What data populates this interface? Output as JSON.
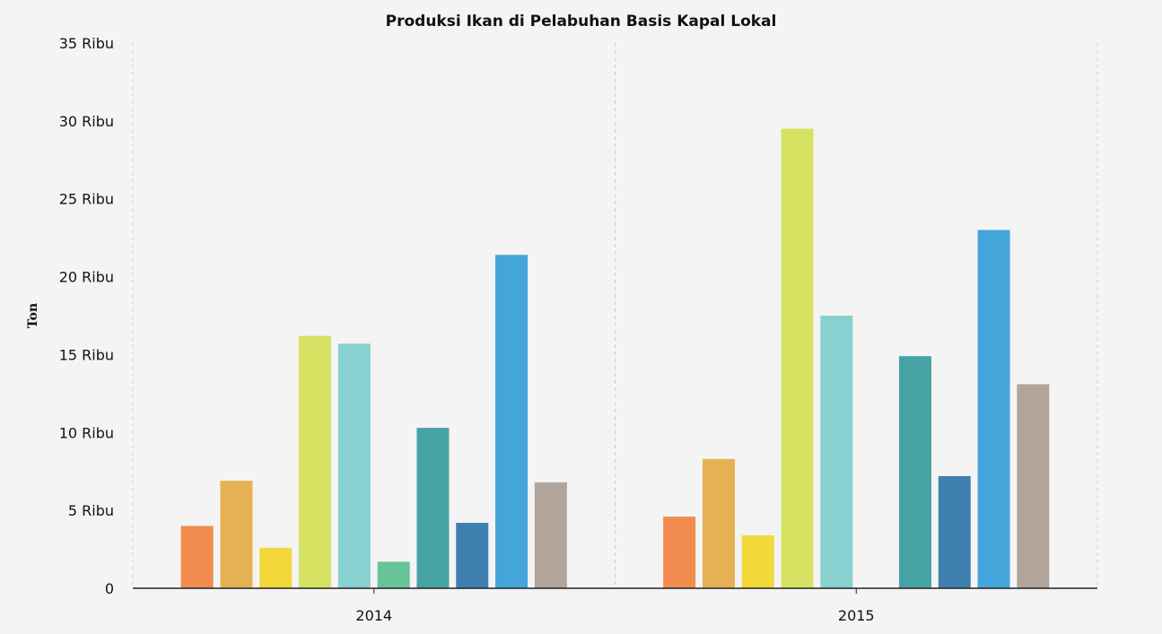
{
  "chart_data": {
    "type": "bar",
    "title": "Produksi Ikan di Pelabuhan Basis Kapal Lokal",
    "xlabel": "",
    "ylabel": "Ton",
    "categories": [
      "2014",
      "2015"
    ],
    "ylim": [
      0,
      35000
    ],
    "y_ticks": [
      {
        "value": 0,
        "label": "0"
      },
      {
        "value": 5000,
        "label": "5 Ribu"
      },
      {
        "value": 10000,
        "label": "10 Ribu"
      },
      {
        "value": 15000,
        "label": "15 Ribu"
      },
      {
        "value": 20000,
        "label": "20 Ribu"
      },
      {
        "value": 25000,
        "label": "25 Ribu"
      },
      {
        "value": 30000,
        "label": "30 Ribu"
      },
      {
        "value": 35000,
        "label": "35 Ribu"
      }
    ],
    "grid": "vertical-dashed",
    "legend": "none",
    "series": [
      {
        "color": "#f28b4e",
        "values": [
          4000,
          4600
        ]
      },
      {
        "color": "#e6b153",
        "values": [
          6900,
          8300
        ]
      },
      {
        "color": "#f2d83b",
        "values": [
          2600,
          3400
        ]
      },
      {
        "color": "#d7e263",
        "values": [
          16200,
          29500
        ]
      },
      {
        "color": "#88d1d1",
        "values": [
          15700,
          17500
        ]
      },
      {
        "color": "#68c396",
        "values": [
          1700,
          null
        ]
      },
      {
        "color": "#46a3a3",
        "values": [
          10300,
          14900
        ]
      },
      {
        "color": "#3e80b0",
        "values": [
          4200,
          7200
        ]
      },
      {
        "color": "#43a5d9",
        "values": [
          21400,
          23000
        ]
      },
      {
        "color": "#b0a49b",
        "values": [
          6800,
          13100
        ]
      }
    ]
  }
}
